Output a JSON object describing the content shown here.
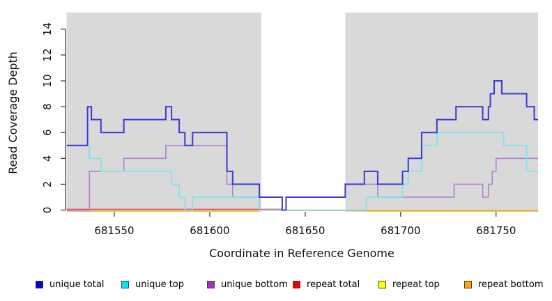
{
  "chart_data": {
    "type": "line",
    "line_style": "step-after",
    "title": "",
    "xlabel": "Coordinate in Reference Genome",
    "ylabel": "Read Coverage Depth",
    "xlim": [
      681525,
      681772
    ],
    "ylim": [
      0,
      15.4
    ],
    "x_ticks": [
      681550,
      681600,
      681650,
      681700,
      681750
    ],
    "y_ticks": [
      0,
      2,
      4,
      6,
      8,
      10,
      12,
      14
    ],
    "grid": "off",
    "legend_position": "bottom",
    "background": {
      "panel_color": "#d9d9d9",
      "unshaded_region": {
        "from": 681627,
        "to": 681671,
        "color": "#ffffff"
      }
    },
    "series": [
      {
        "name": "unique total",
        "legend_color": "#0000cd",
        "line_color": "#3a3ad9",
        "line_width": 2,
        "end": 681772,
        "points": [
          [
            681525,
            5
          ],
          [
            681536,
            8
          ],
          [
            681538,
            7
          ],
          [
            681543,
            6
          ],
          [
            681555,
            7
          ],
          [
            681577,
            8
          ],
          [
            681580,
            7
          ],
          [
            681584,
            6
          ],
          [
            681587,
            5
          ],
          [
            681591,
            6
          ],
          [
            681609,
            3
          ],
          [
            681612,
            2
          ],
          [
            681626,
            1
          ],
          [
            681638,
            0
          ],
          [
            681640,
            1
          ],
          [
            681671,
            2
          ],
          [
            681681,
            3
          ],
          [
            681688,
            2
          ],
          [
            681701,
            3
          ],
          [
            681704,
            4
          ],
          [
            681711,
            6
          ],
          [
            681719,
            7
          ],
          [
            681729,
            8
          ],
          [
            681743,
            7
          ],
          [
            681746,
            8
          ],
          [
            681747,
            9
          ],
          [
            681749,
            10
          ],
          [
            681753,
            9
          ],
          [
            681766,
            8
          ],
          [
            681770,
            7
          ]
        ]
      },
      {
        "name": "unique top",
        "legend_color": "#00e5ee",
        "line_color": "#79e6f0",
        "line_width": 1.6,
        "end": 681772,
        "points": [
          [
            681525,
            5
          ],
          [
            681537,
            4
          ],
          [
            681543,
            3
          ],
          [
            681580,
            2
          ],
          [
            681584,
            1
          ],
          [
            681587,
            0
          ],
          [
            681591,
            1
          ],
          [
            681626,
            0
          ],
          [
            681682,
            1
          ],
          [
            681701,
            2
          ],
          [
            681704,
            3
          ],
          [
            681711,
            5
          ],
          [
            681719,
            6
          ],
          [
            681754,
            5
          ],
          [
            681766,
            3
          ]
        ]
      },
      {
        "name": "unique bottom",
        "legend_color": "#9932cc",
        "line_color": "#b27fd8",
        "line_width": 1.6,
        "end": 681772,
        "points": [
          [
            681525,
            0
          ],
          [
            681537,
            3
          ],
          [
            681555,
            4
          ],
          [
            681577,
            5
          ],
          [
            681609,
            2
          ],
          [
            681612,
            1
          ],
          [
            681626,
            0
          ],
          [
            681640,
            1
          ],
          [
            681671,
            2
          ],
          [
            681688,
            1
          ],
          [
            681728,
            2
          ],
          [
            681743,
            1
          ],
          [
            681746,
            2
          ],
          [
            681748,
            3
          ],
          [
            681750,
            4
          ]
        ]
      },
      {
        "name": "repeat total",
        "legend_color": "#e60000",
        "line_color": "#e0507a",
        "line_width": 1.3,
        "end": 681638,
        "y_nudge": -1.2,
        "points": [
          [
            681525,
            0
          ]
        ]
      },
      {
        "name": "repeat top",
        "legend_color": "#ffff00",
        "line_color": "#ffff00",
        "line_width": 1.3,
        "end": null,
        "points": []
      },
      {
        "name": "repeat bottom",
        "legend_color": "#ffa500",
        "line_color": "#ffa500",
        "line_width": 1.9,
        "y_nudge": 0.9,
        "segments": [
          {
            "from": 681525,
            "to": 681626,
            "value": 0
          },
          {
            "from": 681682,
            "to": 681772,
            "value": 0
          }
        ]
      }
    ],
    "extra_marks": [
      {
        "name": "zero-coverage-gap-line",
        "color": "#7dc97f",
        "value": 0,
        "from": 681640,
        "to": 681682,
        "line_width": 1.4,
        "y_nudge": 0.2
      }
    ]
  }
}
